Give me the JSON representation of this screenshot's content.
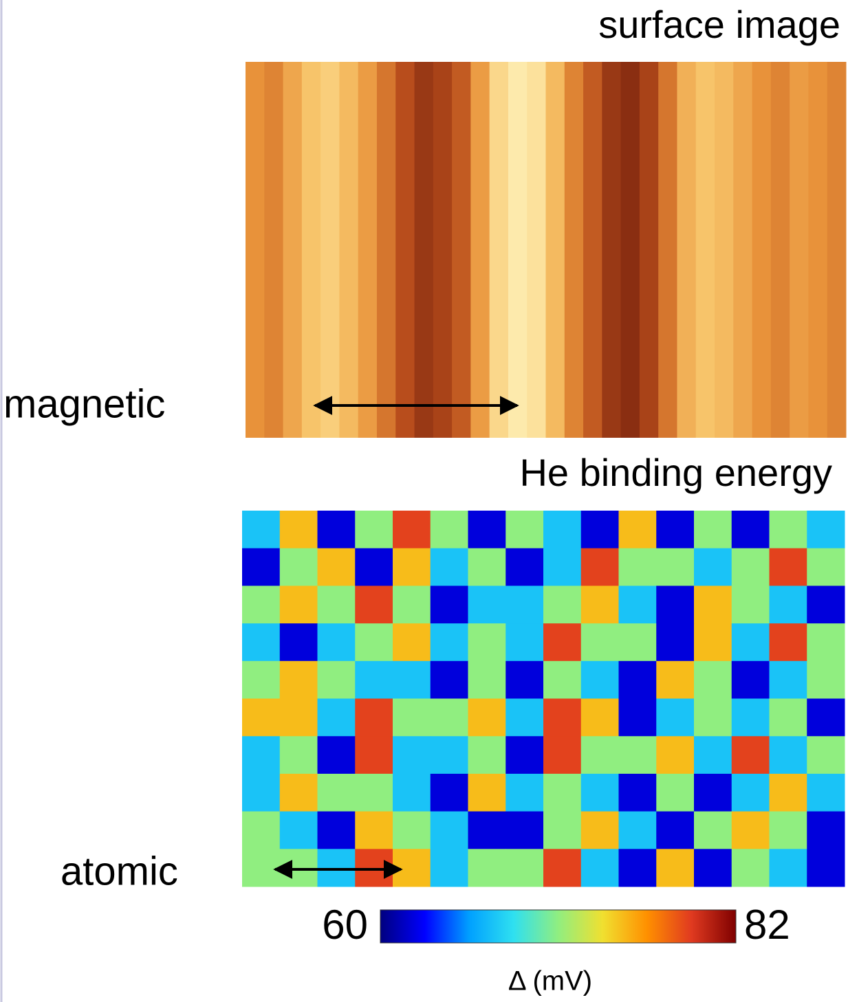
{
  "chart_data": [
    {
      "type": "stripes",
      "title": "surface image",
      "annotation": "magnetic",
      "colormap": [
        "#6b1a0a",
        "#b84d1c",
        "#e8923a",
        "#f7c46a",
        "#fff4bd"
      ],
      "zlim": [
        0,
        1
      ],
      "values": [
        0.5,
        0.45,
        0.6,
        0.75,
        0.8,
        0.7,
        0.55,
        0.4,
        0.25,
        0.15,
        0.2,
        0.3,
        0.55,
        0.85,
        0.95,
        0.9,
        0.7,
        0.45,
        0.3,
        0.15,
        0.1,
        0.2,
        0.4,
        0.65,
        0.75,
        0.7,
        0.6,
        0.5,
        0.45,
        0.55,
        0.5,
        0.45
      ]
    },
    {
      "type": "heatmap",
      "title": "He binding energy",
      "annotation": "atomic",
      "colormap": [
        "#00007f",
        "#0000ff",
        "#00a0ff",
        "#2fe0f0",
        "#90ee80",
        "#f0e030",
        "#ff9000",
        "#e03a20",
        "#7f0000"
      ],
      "zlim": [
        60,
        82
      ],
      "zticks": [
        60,
        82
      ],
      "zlabel": "Δ (mV)",
      "z": [
        [
          67,
          75,
          62,
          71,
          79,
          71,
          62,
          71,
          67,
          62,
          75,
          62,
          71,
          62,
          71,
          67
        ],
        [
          62,
          71,
          75,
          62,
          75,
          67,
          71,
          62,
          67,
          79,
          71,
          71,
          67,
          71,
          79,
          71
        ],
        [
          71,
          75,
          71,
          79,
          71,
          62,
          67,
          67,
          71,
          75,
          67,
          62,
          75,
          71,
          67,
          62
        ],
        [
          67,
          62,
          67,
          71,
          75,
          67,
          71,
          67,
          79,
          71,
          71,
          62,
          75,
          67,
          79,
          71
        ],
        [
          71,
          75,
          71,
          67,
          67,
          62,
          71,
          62,
          71,
          67,
          62,
          75,
          71,
          62,
          67,
          71
        ],
        [
          75,
          75,
          67,
          79,
          71,
          71,
          75,
          67,
          79,
          75,
          62,
          67,
          71,
          67,
          71,
          62
        ],
        [
          67,
          71,
          62,
          79,
          67,
          67,
          71,
          62,
          79,
          71,
          71,
          75,
          67,
          79,
          67,
          71
        ],
        [
          67,
          75,
          71,
          71,
          67,
          62,
          75,
          67,
          71,
          67,
          62,
          71,
          62,
          67,
          75,
          67
        ],
        [
          71,
          67,
          62,
          75,
          71,
          67,
          62,
          62,
          71,
          75,
          67,
          62,
          71,
          75,
          71,
          62
        ],
        [
          71,
          71,
          67,
          79,
          75,
          67,
          71,
          71,
          79,
          67,
          62,
          75,
          62,
          71,
          67,
          62
        ]
      ]
    }
  ]
}
